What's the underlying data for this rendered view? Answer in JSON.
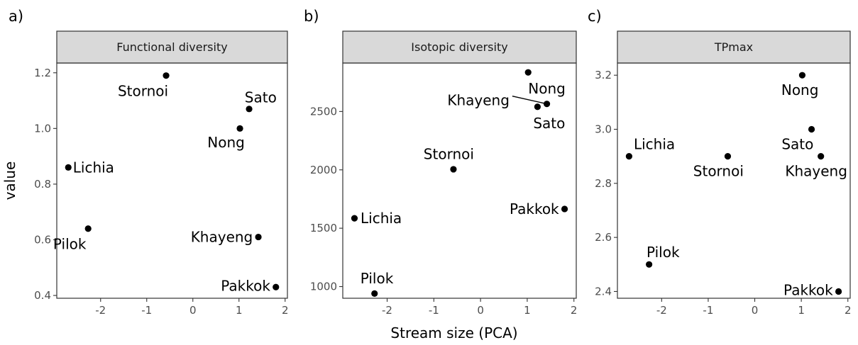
{
  "figure": {
    "ylabel": "value",
    "xlabel": "Stream size (PCA)"
  },
  "chart_data": [
    {
      "type": "scatter",
      "tag": "a)",
      "title": "Functional diversity",
      "xlabel": "",
      "ylabel": "value",
      "xlim": [
        -2.95,
        2.05
      ],
      "ylim": [
        0.39,
        1.235
      ],
      "xticks": [
        -2,
        -1,
        0,
        1,
        2
      ],
      "yticks": [
        0.4,
        0.6,
        0.8,
        1.0,
        1.2
      ],
      "ytick_labels": [
        "0.4",
        "0.6",
        "0.8",
        "1.0",
        "1.2"
      ],
      "grid": false,
      "points": [
        {
          "label": "Lichia",
          "x": -2.7,
          "y": 0.86,
          "anchor": "start",
          "dx": 0.1,
          "dy": 0.0
        },
        {
          "label": "Pilok",
          "x": -2.27,
          "y": 0.64,
          "anchor": "middle",
          "dx": -0.4,
          "dy": -0.055
        },
        {
          "label": "Stornoi",
          "x": -0.58,
          "y": 1.19,
          "anchor": "middle",
          "dx": -0.5,
          "dy": -0.055
        },
        {
          "label": "Nong",
          "x": 1.02,
          "y": 1.0,
          "anchor": "middle",
          "dx": -0.3,
          "dy": -0.05
        },
        {
          "label": "Sato",
          "x": 1.22,
          "y": 1.07,
          "anchor": "middle",
          "dx": 0.25,
          "dy": 0.042
        },
        {
          "label": "Khayeng",
          "x": 1.42,
          "y": 0.61,
          "anchor": "end",
          "dx": -0.12,
          "dy": 0.0
        },
        {
          "label": "Pakkok",
          "x": 1.8,
          "y": 0.43,
          "anchor": "end",
          "dx": -0.12,
          "dy": 0.005
        }
      ]
    },
    {
      "type": "scatter",
      "tag": "b)",
      "title": "Isotopic diversity",
      "xlabel": "Stream size (PCA)",
      "ylabel": "",
      "xlim": [
        -2.95,
        2.05
      ],
      "ylim": [
        900,
        2915
      ],
      "xticks": [
        -2,
        -1,
        0,
        1,
        2
      ],
      "yticks": [
        1000,
        1500,
        2000,
        2500
      ],
      "ytick_labels": [
        "1000",
        "1500",
        "2000",
        "2500"
      ],
      "grid": false,
      "points": [
        {
          "label": "Lichia",
          "x": -2.7,
          "y": 1585,
          "anchor": "start",
          "dx": 0.13,
          "dy": 0
        },
        {
          "label": "Pilok",
          "x": -2.27,
          "y": 940,
          "anchor": "middle",
          "dx": 0.05,
          "dy": 130
        },
        {
          "label": "Stornoi",
          "x": -0.58,
          "y": 2005,
          "anchor": "middle",
          "dx": -0.1,
          "dy": 130
        },
        {
          "label": "Nong",
          "x": 1.02,
          "y": 2835,
          "anchor": "middle",
          "dx": 0.4,
          "dy": -140
        },
        {
          "label": "Khayeng",
          "x": 1.42,
          "y": 2565,
          "anchor": "end",
          "dx": -0.8,
          "dy": 30,
          "line": true
        },
        {
          "label": "Sato",
          "x": 1.22,
          "y": 2540,
          "anchor": "middle",
          "dx": 0.25,
          "dy": -140
        },
        {
          "label": "Pakkok",
          "x": 1.8,
          "y": 1665,
          "anchor": "end",
          "dx": -0.12,
          "dy": 0
        }
      ]
    },
    {
      "type": "scatter",
      "tag": "c)",
      "title": "TPmax",
      "xlabel": "",
      "ylabel": "",
      "xlim": [
        -2.95,
        2.05
      ],
      "ylim": [
        2.375,
        3.245
      ],
      "xticks": [
        -2,
        -1,
        0,
        1,
        2
      ],
      "yticks": [
        2.4,
        2.6,
        2.8,
        3.0,
        3.2
      ],
      "ytick_labels": [
        "2.4",
        "2.6",
        "2.8",
        "3.0",
        "3.2"
      ],
      "grid": false,
      "points": [
        {
          "label": "Lichia",
          "x": -2.7,
          "y": 2.9,
          "anchor": "start",
          "dx": 0.1,
          "dy": 0.045
        },
        {
          "label": "Pilok",
          "x": -2.27,
          "y": 2.5,
          "anchor": "middle",
          "dx": 0.3,
          "dy": 0.045
        },
        {
          "label": "Stornoi",
          "x": -0.58,
          "y": 2.9,
          "anchor": "middle",
          "dx": -0.2,
          "dy": -0.055
        },
        {
          "label": "Nong",
          "x": 1.02,
          "y": 3.2,
          "anchor": "middle",
          "dx": -0.05,
          "dy": -0.055
        },
        {
          "label": "Sato",
          "x": 1.22,
          "y": 3.0,
          "anchor": "middle",
          "dx": -0.3,
          "dy": -0.055
        },
        {
          "label": "Khayeng",
          "x": 1.42,
          "y": 2.9,
          "anchor": "middle",
          "dx": -0.1,
          "dy": -0.055
        },
        {
          "label": "Pakkok",
          "x": 1.8,
          "y": 2.4,
          "anchor": "end",
          "dx": -0.12,
          "dy": 0.005
        }
      ]
    }
  ]
}
